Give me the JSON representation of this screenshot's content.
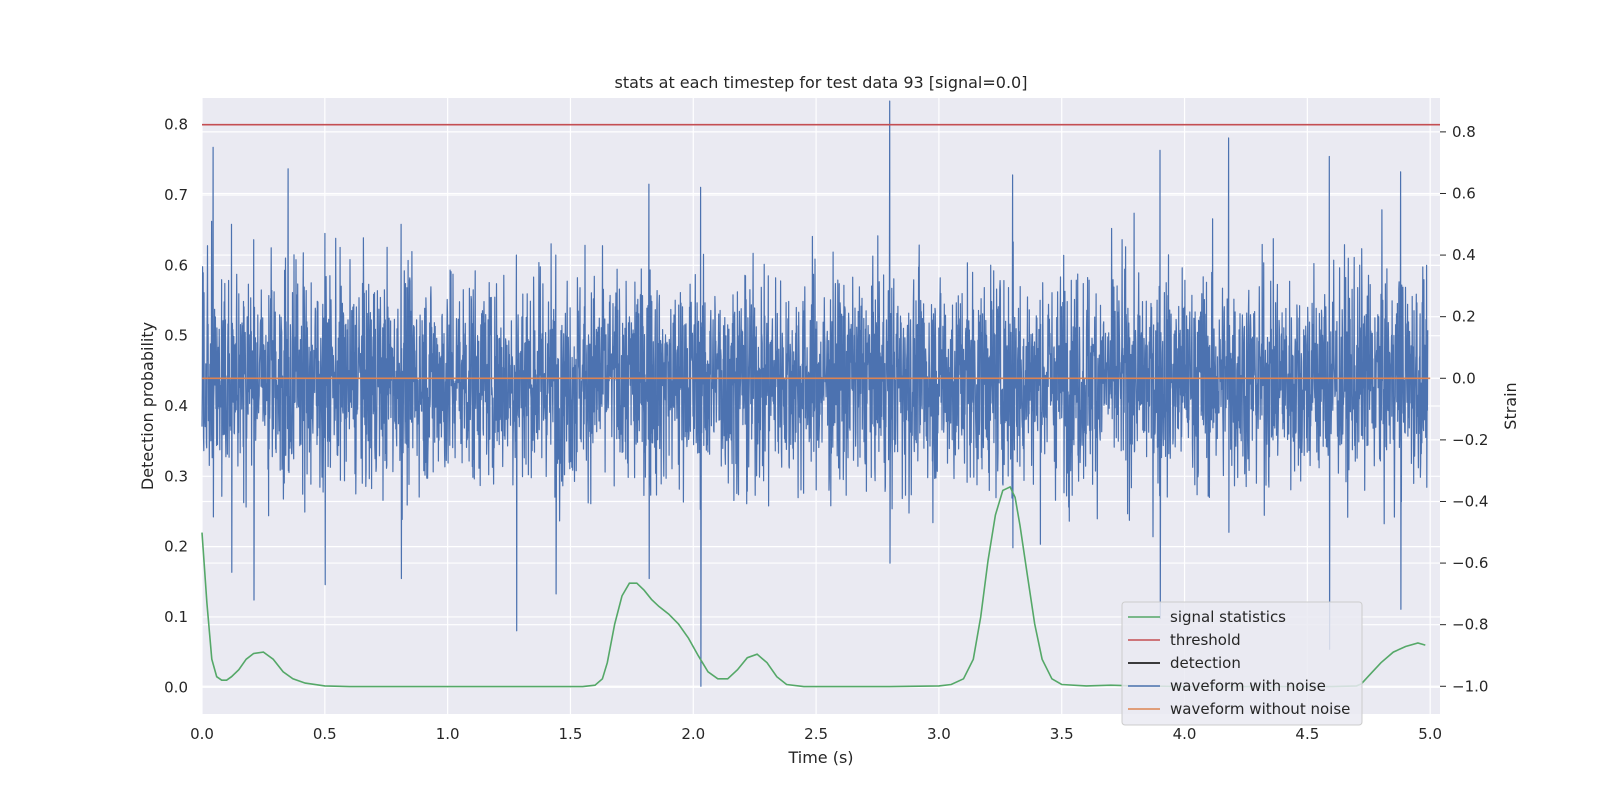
{
  "chart_data": {
    "type": "line",
    "title": "stats at each timestep for test data 93 [signal=0.0]",
    "xlabel": "Time (s)",
    "ylabel": "Detection probability",
    "ylabel_right": "Strain",
    "xlim": [
      0.0,
      5.04
    ],
    "ylim": [
      -0.038,
      0.838
    ],
    "ylim_right": [
      -1.09,
      0.91
    ],
    "x_ticks": [
      0.0,
      0.5,
      1.0,
      1.5,
      2.0,
      2.5,
      3.0,
      3.5,
      4.0,
      4.5,
      5.0
    ],
    "x_tick_labels": [
      "0.0",
      "0.5",
      "1.0",
      "1.5",
      "2.0",
      "2.5",
      "3.0",
      "3.5",
      "4.0",
      "4.5",
      "5.0"
    ],
    "y_ticks": [
      0.0,
      0.1,
      0.2,
      0.3,
      0.4,
      0.5,
      0.6,
      0.7,
      0.8
    ],
    "y_tick_labels": [
      "0.0",
      "0.1",
      "0.2",
      "0.3",
      "0.4",
      "0.5",
      "0.6",
      "0.7",
      "0.8"
    ],
    "y_right_ticks": [
      -1.0,
      -0.8,
      -0.6,
      -0.4,
      -0.2,
      0.0,
      0.2,
      0.4,
      0.6,
      0.8
    ],
    "y_right_tick_labels": [
      "−1.0",
      "−0.8",
      "−0.6",
      "−0.4",
      "−0.2",
      "0.0",
      "0.2",
      "0.4",
      "0.6",
      "0.8"
    ],
    "grid": true,
    "legend_position": "lower-right",
    "series": [
      {
        "name": "signal statistics",
        "color": "#55a868",
        "axis": "left",
        "x": [
          0.0,
          0.02,
          0.04,
          0.06,
          0.08,
          0.1,
          0.12,
          0.15,
          0.18,
          0.21,
          0.25,
          0.29,
          0.33,
          0.37,
          0.42,
          0.5,
          0.6,
          0.8,
          1.0,
          1.2,
          1.4,
          1.55,
          1.6,
          1.63,
          1.65,
          1.68,
          1.71,
          1.74,
          1.77,
          1.8,
          1.83,
          1.86,
          1.9,
          1.94,
          1.98,
          2.02,
          2.06,
          2.1,
          2.14,
          2.18,
          2.22,
          2.26,
          2.3,
          2.34,
          2.38,
          2.45,
          2.6,
          2.8,
          3.0,
          3.05,
          3.1,
          3.14,
          3.17,
          3.2,
          3.23,
          3.26,
          3.29,
          3.31,
          3.33,
          3.36,
          3.39,
          3.42,
          3.46,
          3.5,
          3.6,
          3.7,
          3.8,
          4.0,
          4.2,
          4.4,
          4.6,
          4.7,
          4.72,
          4.76,
          4.8,
          4.85,
          4.9,
          4.95,
          4.98
        ],
        "values": [
          0.22,
          0.12,
          0.04,
          0.015,
          0.01,
          0.01,
          0.015,
          0.025,
          0.04,
          0.048,
          0.05,
          0.04,
          0.022,
          0.012,
          0.006,
          0.002,
          0.001,
          0.001,
          0.001,
          0.001,
          0.001,
          0.001,
          0.003,
          0.012,
          0.035,
          0.09,
          0.13,
          0.148,
          0.148,
          0.138,
          0.125,
          0.115,
          0.104,
          0.09,
          0.07,
          0.045,
          0.022,
          0.012,
          0.012,
          0.025,
          0.042,
          0.047,
          0.035,
          0.015,
          0.004,
          0.001,
          0.001,
          0.001,
          0.002,
          0.004,
          0.012,
          0.04,
          0.1,
          0.18,
          0.245,
          0.28,
          0.285,
          0.27,
          0.23,
          0.16,
          0.09,
          0.04,
          0.012,
          0.004,
          0.002,
          0.003,
          0.002,
          0.001,
          0.001,
          0.001,
          0.001,
          0.002,
          0.005,
          0.02,
          0.035,
          0.05,
          0.058,
          0.063,
          0.06
        ]
      },
      {
        "name": "threshold",
        "color": "#c44e52",
        "axis": "left",
        "x": [
          0.0,
          5.04
        ],
        "values": [
          0.8,
          0.8
        ]
      },
      {
        "name": "detection",
        "color": "#000000",
        "axis": "left",
        "x": [],
        "values": []
      },
      {
        "name": "waveform with noise",
        "color": "#4c72b0",
        "axis": "right",
        "x_range": [
          0.0,
          4.99
        ],
        "description": "dense noise trace",
        "peaks": [
          {
            "x": 0.045,
            "values": [
              0.75,
              -0.45
            ]
          },
          {
            "x": 0.12,
            "values": [
              0.5,
              -0.63
            ]
          },
          {
            "x": 0.21,
            "values": [
              0.45,
              -0.72
            ]
          },
          {
            "x": 0.35,
            "values": [
              0.68,
              -0.3
            ]
          },
          {
            "x": 0.5,
            "values": [
              0.47,
              -0.67
            ]
          },
          {
            "x": 0.81,
            "values": [
              0.5,
              -0.65
            ]
          },
          {
            "x": 1.28,
            "values": [
              0.4,
              -0.82
            ]
          },
          {
            "x": 1.44,
            "values": [
              0.4,
              -0.7
            ]
          },
          {
            "x": 1.82,
            "values": [
              0.63,
              -0.65
            ]
          },
          {
            "x": 2.03,
            "values": [
              0.62,
              -1.0
            ]
          },
          {
            "x": 2.8,
            "values": [
              0.9,
              -0.6
            ]
          },
          {
            "x": 3.3,
            "values": [
              0.66,
              -0.55
            ]
          },
          {
            "x": 3.9,
            "values": [
              0.74,
              -0.78
            ]
          },
          {
            "x": 4.18,
            "values": [
              0.78,
              -0.5
            ]
          },
          {
            "x": 4.59,
            "values": [
              0.72,
              -0.88
            ]
          },
          {
            "x": 4.88,
            "values": [
              0.67,
              -0.75
            ]
          }
        ]
      },
      {
        "name": "waveform without noise",
        "color": "#dd8452",
        "axis": "right",
        "x": [
          0.0,
          5.0
        ],
        "values": [
          0.0,
          0.0
        ]
      }
    ]
  }
}
